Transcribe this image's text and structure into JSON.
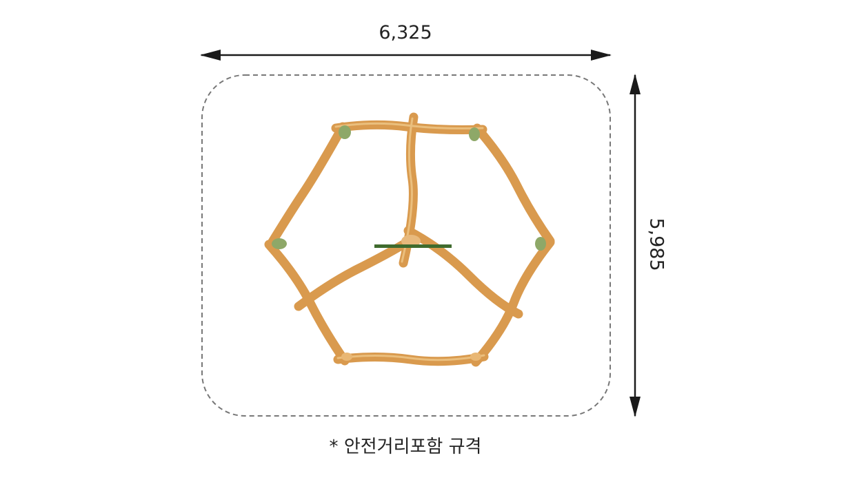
{
  "dimensions": {
    "width": "6,325",
    "height": "5,985"
  },
  "caption": "* 안전거리포함 규격",
  "colors": {
    "wood": "#e2a85c",
    "wood_light": "#f0c98a",
    "cap": "#8ea868",
    "platform": "#3f6b2e",
    "dash": "#777777",
    "arrow": "#1a1a1a"
  }
}
